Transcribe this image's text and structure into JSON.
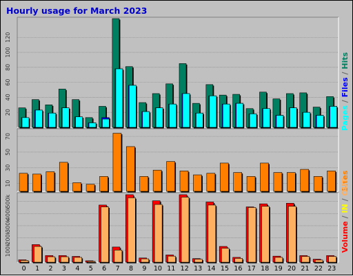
{
  "title": "Hourly usage for March 2023",
  "colors": {
    "pages": "#008060",
    "files": "#0000ff",
    "hits": "#00ffff",
    "sites": "#ff8000",
    "volume": "#ff0000",
    "in": "#ffff00",
    "out": "#ffb060",
    "slash": "#00ffff",
    "sep": "#666666"
  },
  "chart_data": [
    {
      "type": "bar",
      "categories": [
        "0",
        "1",
        "2",
        "3",
        "4",
        "5",
        "6",
        "7",
        "8",
        "9",
        "10",
        "11",
        "12",
        "13",
        "14",
        "15",
        "16",
        "17",
        "18",
        "19",
        "20",
        "21",
        "22",
        "23"
      ],
      "ylim": [
        0,
        145
      ],
      "yticks": [
        "20",
        "40",
        "60",
        "80",
        "100",
        "120"
      ],
      "legend_labels": {
        "pages": "Pages",
        "sep1": " / ",
        "files": "Files",
        "sep2": " / ",
        "hits": "Hits"
      },
      "series": [
        {
          "name": "Pages",
          "values": [
            26,
            37,
            30,
            51,
            37,
            13,
            28,
            145,
            81,
            33,
            45,
            58,
            85,
            32,
            57,
            43,
            44,
            25,
            47,
            38,
            45,
            46,
            27,
            41
          ]
        },
        {
          "name": "Files",
          "values": [
            13,
            23,
            19,
            26,
            14,
            6,
            13,
            78,
            56,
            21,
            26,
            31,
            45,
            19,
            42,
            31,
            32,
            18,
            25,
            16,
            26,
            20,
            16,
            28
          ]
        },
        {
          "name": "Hits",
          "values": [
            13,
            23,
            19,
            26,
            14,
            6,
            11,
            78,
            56,
            21,
            26,
            31,
            45,
            19,
            42,
            31,
            32,
            18,
            25,
            16,
            26,
            20,
            16,
            28
          ]
        }
      ]
    },
    {
      "type": "bar",
      "categories": [
        "0",
        "1",
        "2",
        "3",
        "4",
        "5",
        "6",
        "7",
        "8",
        "9",
        "10",
        "11",
        "12",
        "13",
        "14",
        "15",
        "16",
        "17",
        "18",
        "19",
        "20",
        "21",
        "22",
        "23"
      ],
      "ylim": [
        0,
        78
      ],
      "yticks": [
        "10",
        "30",
        "50",
        "70"
      ],
      "legend_labels": {
        "sites": "Sites"
      },
      "series": [
        {
          "name": "Sites",
          "values": [
            23,
            22,
            25,
            37,
            11,
            9,
            19,
            74,
            57,
            19,
            27,
            38,
            26,
            21,
            23,
            36,
            24,
            19,
            36,
            24,
            24,
            28,
            19,
            26
          ]
        }
      ]
    },
    {
      "type": "bar",
      "categories": [
        "0",
        "1",
        "2",
        "3",
        "4",
        "5",
        "6",
        "7",
        "8",
        "9",
        "10",
        "11",
        "12",
        "13",
        "14",
        "15",
        "16",
        "17",
        "18",
        "19",
        "20",
        "21",
        "22",
        "23"
      ],
      "ylim": [
        0,
        560000
      ],
      "yticks": [
        "100k",
        "200k",
        "300k",
        "400k",
        "500k"
      ],
      "legend_labels": {
        "volume": "Volume",
        "sep1": " / ",
        "in": "IN",
        "sep2": " / ",
        "out": "OUT"
      },
      "series": [
        {
          "name": "Volume",
          "values": [
            20000,
            145000,
            55000,
            55000,
            48000,
            12000,
            470000,
            125000,
            555000,
            35000,
            505000,
            60000,
            555000,
            30000,
            495000,
            130000,
            40000,
            455000,
            480000,
            50000,
            485000,
            55000,
            25000,
            55000
          ]
        },
        {
          "name": "OUT",
          "values": [
            15000,
            130000,
            45000,
            45000,
            40000,
            8000,
            455000,
            100000,
            530000,
            28000,
            475000,
            50000,
            535000,
            25000,
            470000,
            115000,
            32000,
            450000,
            460000,
            40000,
            460000,
            48000,
            18000,
            48000
          ]
        }
      ]
    }
  ]
}
